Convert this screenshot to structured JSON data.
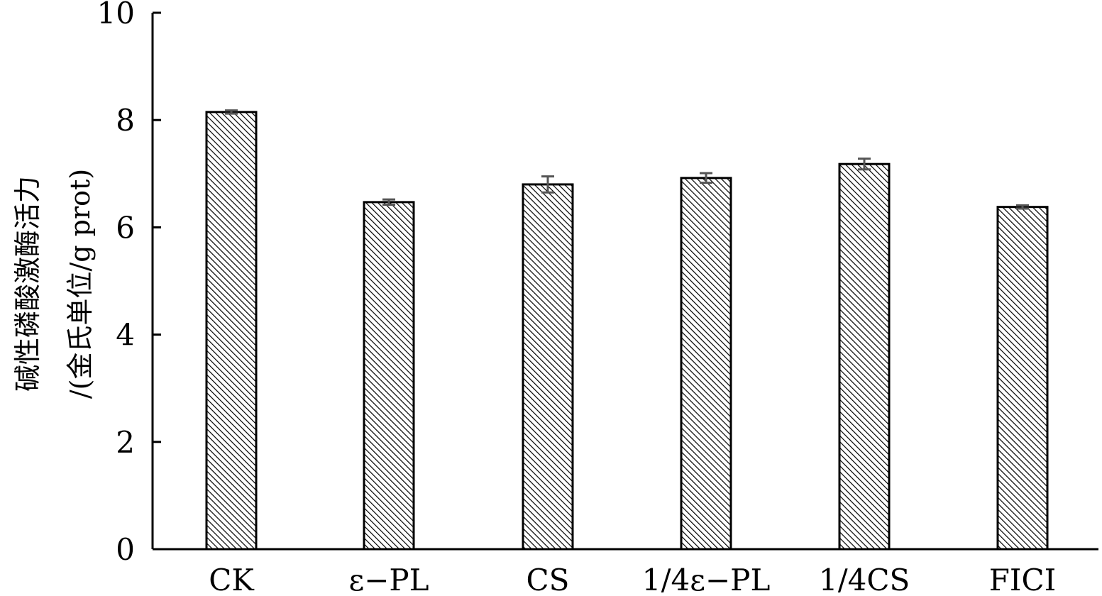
{
  "chart_data": {
    "type": "bar",
    "title": "",
    "xlabel": "",
    "ylabel_line1": "碱性磷酸激酶活力",
    "ylabel_line2": "/(金氏单位/g prot)",
    "categories": [
      "CK",
      "ε−PL",
      "CS",
      "1/4ε−PL",
      "1/4CS",
      "FICI"
    ],
    "values": [
      8.15,
      6.47,
      6.8,
      6.92,
      7.18,
      6.38
    ],
    "errors": [
      0.03,
      0.05,
      0.15,
      0.09,
      0.1,
      0.03
    ],
    "ylim": [
      0,
      10
    ],
    "yticks": [
      "0",
      "2",
      "4",
      "6",
      "8",
      "10"
    ],
    "grid": false,
    "legend": "none",
    "bar_fill": "hatched",
    "colors": {
      "bar_stroke": "#000000",
      "hatch": "#000000",
      "error_bar": "#555555",
      "axis": "#000000"
    }
  }
}
